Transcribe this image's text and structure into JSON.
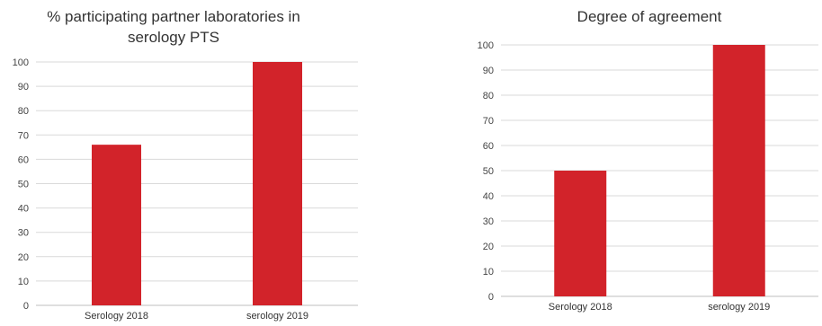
{
  "chart_data": [
    {
      "type": "bar",
      "title_lines": [
        "% participating partner laboratories in",
        "serology PTS"
      ],
      "categories": [
        "Serology 2018",
        "serology 2019"
      ],
      "values": [
        66,
        100
      ],
      "ylim": [
        0,
        100
      ],
      "yticks": [
        "0",
        "10",
        "20",
        "30",
        "40",
        "50",
        "60",
        "70",
        "80",
        "90",
        "100"
      ],
      "grid": true,
      "bar_color": "#d2232a"
    },
    {
      "type": "bar",
      "title_lines": [
        "Degree of agreement"
      ],
      "categories": [
        "Serology 2018",
        "serology 2019"
      ],
      "values": [
        50,
        100
      ],
      "ylim": [
        0,
        100
      ],
      "yticks": [
        "0",
        "10",
        "20",
        "30",
        "40",
        "50",
        "60",
        "70",
        "80",
        "90",
        "100"
      ],
      "grid": true,
      "bar_color": "#d2232a"
    }
  ]
}
